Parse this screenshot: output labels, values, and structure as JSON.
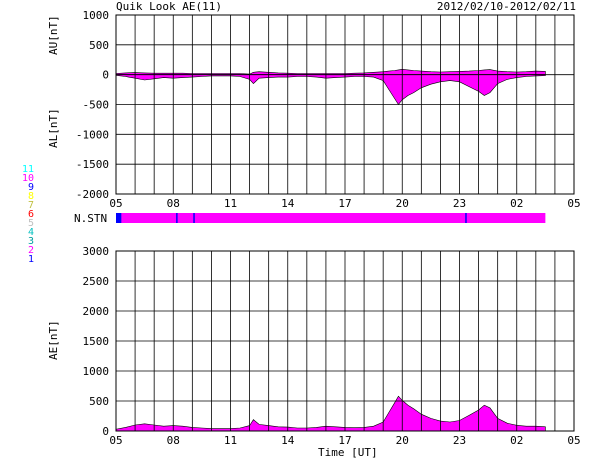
{
  "header": {
    "title": "Quik Look AE(11)",
    "date_range": "2012/02/10-2012/02/11"
  },
  "colors": {
    "fill": "#ff00ff",
    "grid": "#000000",
    "station_bar": "#ff00ff",
    "station_marker": "#0000ff"
  },
  "station_legend": {
    "numbers": [
      "11",
      "10",
      "9",
      "8",
      "7",
      "6",
      "5",
      "4",
      "3",
      "2",
      "1"
    ],
    "colors": [
      "#00ffff",
      "#ff00ff",
      "#0000ff",
      "#ffff00",
      "#c0c040",
      "#ff0000",
      "#c0c0c0",
      "#00c0c0",
      "#00a0a0",
      "#ff00ff",
      "#0000ff"
    ]
  },
  "station_bar": {
    "label": "N.STN",
    "value": 10,
    "low_count_hours": [
      5.0,
      5.2,
      8.15,
      9.05,
      23.3
    ]
  },
  "chart_data": [
    {
      "type": "area",
      "title": "",
      "ylabel_top": "AU[nT]",
      "ylabel_bottom": "AL[nT]",
      "xlabel": "",
      "xlim": [
        5,
        29
      ],
      "ylim": [
        -2000,
        1000
      ],
      "grid": true,
      "x_tick_labels": [
        "05",
        "08",
        "11",
        "14",
        "17",
        "20",
        "23",
        "02",
        "05"
      ],
      "y_tick_labels": [
        "1000",
        "500",
        "0",
        "-500",
        "-1000",
        "-1500",
        "-2000"
      ],
      "x_hours": [
        5,
        5.5,
        6,
        6.5,
        7,
        7.5,
        8,
        8.5,
        9,
        9.5,
        10,
        10.5,
        11,
        11.5,
        12,
        12.2,
        12.5,
        13,
        13.5,
        14,
        14.5,
        15,
        15.5,
        16,
        16.5,
        17,
        17.5,
        18,
        18.5,
        19,
        19.3,
        19.6,
        19.8,
        20,
        20.3,
        20.6,
        21,
        21.5,
        22,
        22.5,
        23,
        23.5,
        24,
        24.3,
        24.6,
        25,
        25.5,
        26,
        26.5,
        27,
        27.5
      ],
      "series": [
        {
          "values": [
            20,
            30,
            35,
            30,
            25,
            25,
            25,
            25,
            20,
            20,
            20,
            20,
            20,
            20,
            10,
            40,
            50,
            40,
            30,
            25,
            20,
            20,
            20,
            20,
            20,
            20,
            25,
            30,
            40,
            50,
            60,
            70,
            80,
            90,
            80,
            70,
            60,
            50,
            45,
            50,
            55,
            60,
            70,
            80,
            85,
            60,
            50,
            45,
            50,
            60,
            55
          ]
        },
        {
          "values": [
            -10,
            -30,
            -60,
            -90,
            -70,
            -50,
            -60,
            -50,
            -40,
            -30,
            -20,
            -20,
            -20,
            -30,
            -80,
            -150,
            -60,
            -50,
            -40,
            -40,
            -30,
            -30,
            -40,
            -60,
            -50,
            -40,
            -30,
            -30,
            -40,
            -100,
            -250,
            -400,
            -500,
            -420,
            -350,
            -300,
            -220,
            -160,
            -120,
            -100,
            -120,
            -200,
            -280,
            -350,
            -300,
            -150,
            -80,
            -50,
            -30,
            -20,
            -15
          ]
        }
      ]
    },
    {
      "type": "area",
      "title": "",
      "ylabel": "AE[nT]",
      "xlabel": "Time [UT]",
      "xlim": [
        5,
        29
      ],
      "ylim": [
        0,
        3000
      ],
      "grid": true,
      "x_tick_labels": [
        "05",
        "08",
        "11",
        "14",
        "17",
        "20",
        "23",
        "02",
        "05"
      ],
      "y_tick_labels": [
        "3000",
        "2500",
        "2000",
        "1500",
        "1000",
        "500",
        "0"
      ],
      "x_hours": [
        5,
        5.5,
        6,
        6.5,
        7,
        7.5,
        8,
        8.5,
        9,
        9.5,
        10,
        10.5,
        11,
        11.5,
        12,
        12.2,
        12.5,
        13,
        13.5,
        14,
        14.5,
        15,
        15.5,
        16,
        16.5,
        17,
        17.5,
        18,
        18.5,
        19,
        19.3,
        19.6,
        19.8,
        20,
        20.3,
        20.6,
        21,
        21.5,
        22,
        22.5,
        23,
        23.5,
        24,
        24.3,
        24.6,
        25,
        25.5,
        26,
        26.5,
        27,
        27.5
      ],
      "series": [
        {
          "values": [
            30,
            60,
            100,
            120,
            100,
            80,
            90,
            80,
            60,
            50,
            40,
            40,
            40,
            50,
            90,
            190,
            110,
            90,
            70,
            65,
            50,
            50,
            60,
            80,
            70,
            60,
            55,
            60,
            80,
            150,
            310,
            470,
            580,
            510,
            430,
            370,
            280,
            210,
            165,
            150,
            175,
            260,
            350,
            430,
            385,
            210,
            130,
            95,
            80,
            80,
            70
          ]
        }
      ]
    }
  ]
}
